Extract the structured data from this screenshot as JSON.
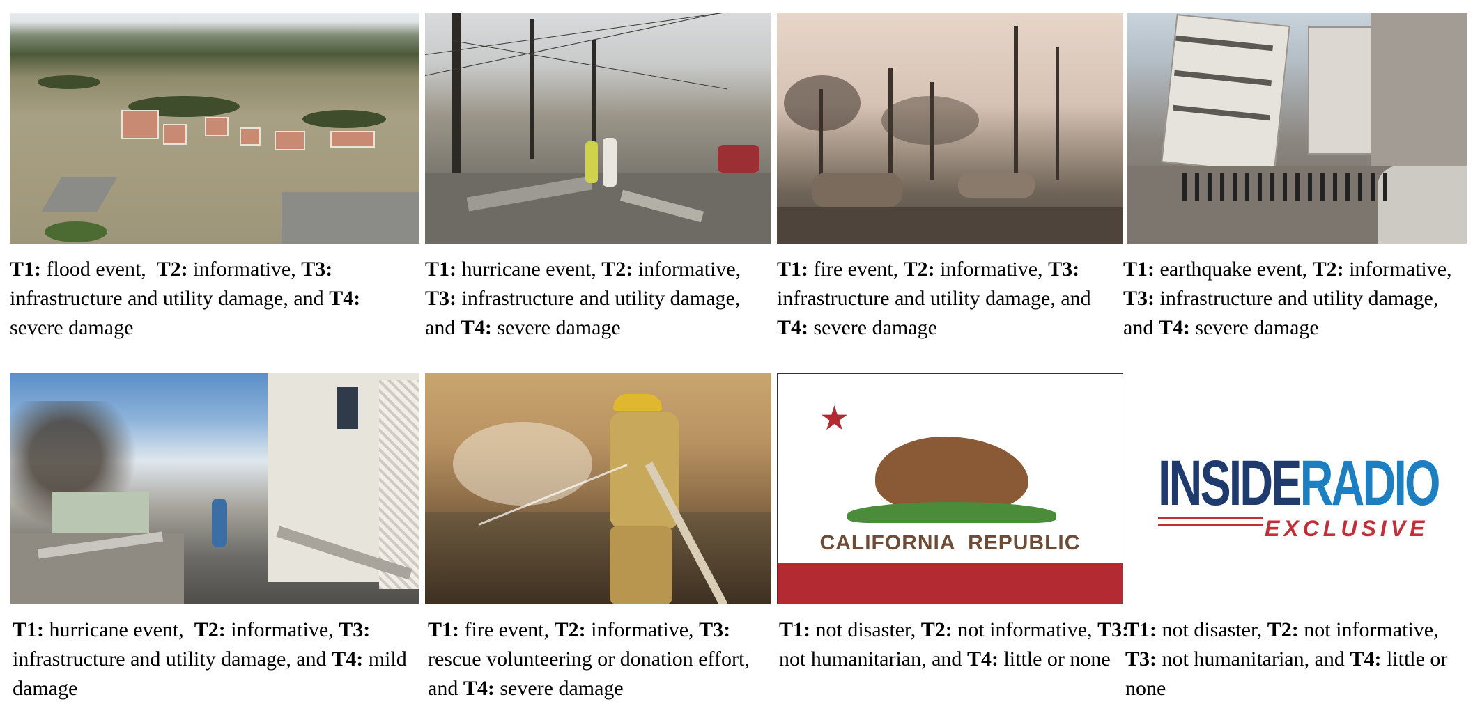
{
  "figure": {
    "cells": [
      {
        "image": "flood aerial photo",
        "caption": [
          {
            "b": "T1:"
          },
          {
            "t": " flood event,  "
          },
          {
            "b": "T2:"
          },
          {
            "t": " informative, "
          },
          {
            "b": "T3:"
          },
          {
            "t": " infrastructure and utility damage, and "
          },
          {
            "b": "T4:"
          },
          {
            "t": " severe damage"
          }
        ]
      },
      {
        "image": "hurricane damaged street photo",
        "caption": [
          {
            "b": "T1:"
          },
          {
            "t": " hurricane event, "
          },
          {
            "b": "T2:"
          },
          {
            "t": " informative, "
          },
          {
            "b": "T3:"
          },
          {
            "t": " infrastructure and utility damage, and "
          },
          {
            "b": "T4:"
          },
          {
            "t": " severe damage"
          }
        ]
      },
      {
        "image": "burned town photo",
        "caption": [
          {
            "b": "T1:"
          },
          {
            "t": " fire event, "
          },
          {
            "b": "T2:"
          },
          {
            "t": " informative, "
          },
          {
            "b": "T3:"
          },
          {
            "t": " infrastructure and utility damage, and "
          },
          {
            "b": "T4:"
          },
          {
            "t": " severe damage"
          }
        ]
      },
      {
        "image": "collapsed buildings photo",
        "caption": [
          {
            "b": "T1:"
          },
          {
            "t": " earthquake event, "
          },
          {
            "b": "T2:"
          },
          {
            "t": " informative, "
          },
          {
            "b": "T3:"
          },
          {
            "t": " infrastructure and utility damage, and "
          },
          {
            "b": "T4:"
          },
          {
            "t": " severe damage"
          }
        ]
      },
      {
        "image": "hurricane debris street photo",
        "caption": [
          {
            "b": "T1:"
          },
          {
            "t": " hurricane event,  "
          },
          {
            "b": "T2:"
          },
          {
            "t": " informative, "
          },
          {
            "b": "T3:"
          },
          {
            "t": " infrastructure and utility damage, and "
          },
          {
            "b": "T4:"
          },
          {
            "t": " mild damage"
          }
        ]
      },
      {
        "image": "firefighter hosing fire photo",
        "caption": [
          {
            "b": "T1:"
          },
          {
            "t": " fire event, "
          },
          {
            "b": "T2:"
          },
          {
            "t": " informative, "
          },
          {
            "b": "T3:"
          },
          {
            "t": " rescue volunteering or donation effort, and "
          },
          {
            "b": "T4:"
          },
          {
            "t": " severe damage"
          }
        ]
      },
      {
        "image": "california flag",
        "flag_text": "CALIFORNIA  REPUBLIC",
        "caption": [
          {
            "b": "T1:"
          },
          {
            "t": " not disaster, "
          },
          {
            "b": "T2:"
          },
          {
            "t": " not informative, "
          },
          {
            "b": "T3:"
          },
          {
            "t": " not humanitarian, and "
          },
          {
            "b": "T4:"
          },
          {
            "t": " little or none"
          }
        ]
      },
      {
        "image": "insideradio logo",
        "logo_part1": "INSIDE",
        "logo_part2": "RADIO",
        "logo_sub": "EXCLUSIVE",
        "caption": [
          {
            "b": "T1:"
          },
          {
            "t": " not disaster, "
          },
          {
            "b": "T2:"
          },
          {
            "t": " not informative, "
          },
          {
            "b": "T3:"
          },
          {
            "t": " not humanitarian, and "
          },
          {
            "b": "T4:"
          },
          {
            "t": " little or none"
          }
        ]
      }
    ]
  }
}
